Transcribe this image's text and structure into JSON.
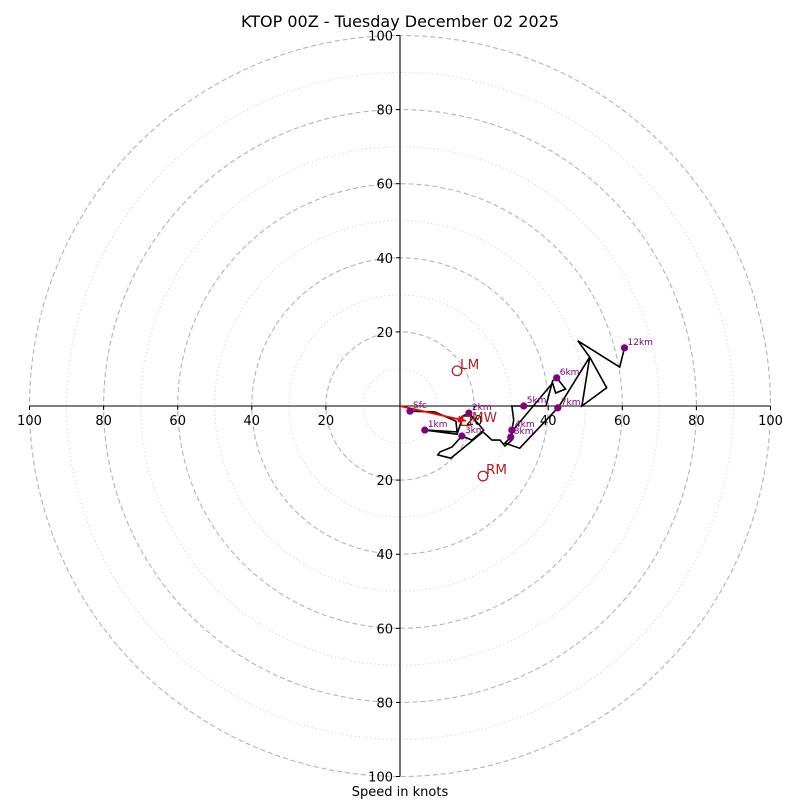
{
  "chart_data": {
    "type": "line",
    "subtype": "hodograph",
    "title": "KTOP 00Z - Tuesday December 02 2025",
    "xlabel": "Speed in knots",
    "ylabel": "",
    "xlim": [
      -100,
      100
    ],
    "ylim": [
      -100,
      100
    ],
    "grid": true,
    "x_ticks": [
      {
        "value": -100,
        "label": "100"
      },
      {
        "value": -80,
        "label": "80"
      },
      {
        "value": -60,
        "label": "60"
      },
      {
        "value": -40,
        "label": "40"
      },
      {
        "value": -20,
        "label": "20"
      },
      {
        "value": 20,
        "label": "20"
      },
      {
        "value": 40,
        "label": "40"
      },
      {
        "value": 60,
        "label": "60"
      },
      {
        "value": 80,
        "label": "80"
      },
      {
        "value": 100,
        "label": "100"
      }
    ],
    "y_ticks": [
      {
        "value": 100,
        "label": "100"
      },
      {
        "value": 80,
        "label": "80"
      },
      {
        "value": 60,
        "label": "60"
      },
      {
        "value": 40,
        "label": "40"
      },
      {
        "value": 20,
        "label": "20"
      },
      {
        "value": -20,
        "label": "20"
      },
      {
        "value": -40,
        "label": "40"
      },
      {
        "value": -60,
        "label": "60"
      },
      {
        "value": -80,
        "label": "80"
      },
      {
        "value": -100,
        "label": "100"
      }
    ],
    "rings": {
      "dashed": [
        20,
        40,
        60,
        80,
        100
      ],
      "dotted": [
        10,
        30,
        50,
        70,
        90
      ]
    },
    "series": [
      {
        "name": "hodograph",
        "color": "#000000",
        "points": [
          [
            2.7,
            -1.4
          ],
          [
            9.4,
            -1.6
          ],
          [
            15.1,
            -4.1
          ],
          [
            15.4,
            -7.0
          ],
          [
            6.7,
            -6.5
          ],
          [
            15.4,
            -7.6
          ],
          [
            17.0,
            -2.7
          ],
          [
            18.6,
            -1.9
          ],
          [
            22.6,
            -6.5
          ],
          [
            19.4,
            -9.2
          ],
          [
            16.7,
            -8.1
          ],
          [
            14.0,
            -11.1
          ],
          [
            10.8,
            -12.4
          ],
          [
            10.2,
            -13.2
          ],
          [
            13.7,
            -14.1
          ],
          [
            22.4,
            -7.0
          ],
          [
            24.8,
            -9.2
          ],
          [
            27.0,
            -9.2
          ],
          [
            28.3,
            -10.8
          ],
          [
            30.2,
            -9.2
          ],
          [
            30.2,
            -6.5
          ],
          [
            30.7,
            -3.8
          ],
          [
            30.2,
            0.0
          ],
          [
            33.4,
            0.0
          ],
          [
            39.4,
            0.0
          ],
          [
            41.2,
            6.8
          ],
          [
            42.3,
            7.6
          ],
          [
            44.7,
            4.6
          ],
          [
            42.0,
            3.5
          ],
          [
            41.2,
            6.2
          ],
          [
            31.0,
            -5.9
          ],
          [
            29.9,
            -8.4
          ],
          [
            28.3,
            -10.0
          ],
          [
            32.3,
            -11.4
          ],
          [
            42.6,
            -0.5
          ],
          [
            43.9,
            1.4
          ],
          [
            51.2,
            13.2
          ],
          [
            49.1,
            0.0
          ],
          [
            55.8,
            4.9
          ],
          [
            51.2,
            13.2
          ],
          [
            48.0,
            17.6
          ],
          [
            59.3,
            10.5
          ],
          [
            60.6,
            15.7
          ]
        ]
      }
    ],
    "height_markers": [
      {
        "label": "Sfc",
        "u": 2.7,
        "v": -1.4
      },
      {
        "label": "1km",
        "u": 6.7,
        "v": -6.5
      },
      {
        "label": "2km",
        "u": 18.6,
        "v": -1.9
      },
      {
        "label": "3km",
        "u": 16.7,
        "v": -8.1
      },
      {
        "label": "4km",
        "u": 30.2,
        "v": -6.5
      },
      {
        "label": "5km",
        "u": 33.4,
        "v": 0.0
      },
      {
        "label": "6km",
        "u": 42.3,
        "v": 7.6
      },
      {
        "label": "7km",
        "u": 42.6,
        "v": -0.5
      },
      {
        "label": "8km",
        "u": 29.9,
        "v": -8.4
      },
      {
        "label": "12km",
        "u": 60.6,
        "v": 15.7
      }
    ],
    "storm_motions": [
      {
        "label": "LM",
        "u": 15.4,
        "v": 9.5,
        "marker": "circle"
      },
      {
        "label": "RM",
        "u": 22.4,
        "v": -18.9,
        "marker": "circle"
      },
      {
        "label": "MW",
        "u": 17.8,
        "v": -4.0,
        "marker": "square"
      }
    ],
    "vectors": [
      {
        "name": "mean-wind-vector",
        "from": [
          0,
          0
        ],
        "to": [
          17.8,
          -4.0
        ]
      }
    ],
    "colors": {
      "hodograph": "#000000",
      "height_marker": "#800080",
      "storm_motion": "#b22222",
      "vector": "#ff0000",
      "ring_major": "#b4b4b4",
      "ring_minor": "#cfcfcf",
      "axis": "#000000"
    }
  }
}
